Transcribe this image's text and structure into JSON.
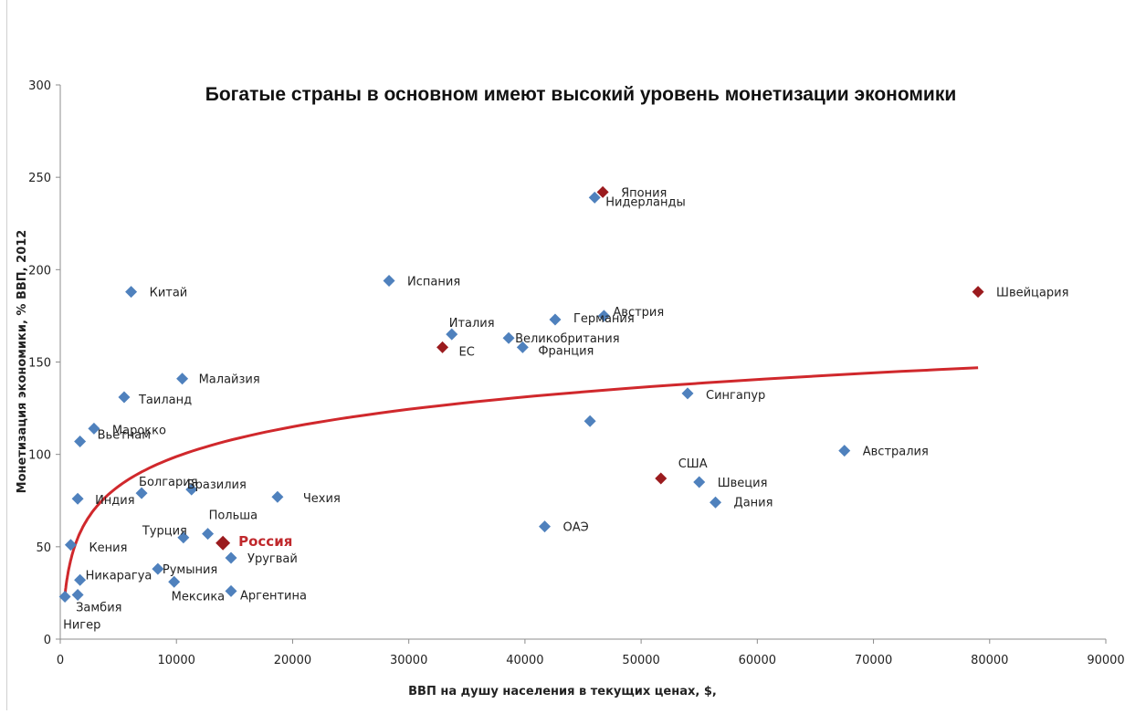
{
  "chart_data": {
    "type": "scatter",
    "title": "Богатые страны в основном имеют высокий уровень монетизации экономики",
    "xlabel": "ВВП на душу населения в текущих ценах, $,",
    "ylabel": "Монетизация экономики, % ВВП, 2012",
    "xlim": [
      0,
      90000
    ],
    "ylim": [
      0,
      300
    ],
    "xticks": [
      "0",
      "10000",
      "20000",
      "30000",
      "40000",
      "50000",
      "60000",
      "70000",
      "80000",
      "90000"
    ],
    "yticks": [
      "0",
      "50",
      "100",
      "150",
      "200",
      "250",
      "300"
    ],
    "grid": false,
    "colors": {
      "point": "#4f81bd",
      "highlight": "#9b1b1e",
      "trend": "#d0282c",
      "russia_label": "#c0292d"
    },
    "trendline": {
      "type": "logarithmic"
    },
    "points": [
      {
        "label": "Япония",
        "x": 46700,
        "y": 242,
        "color": "dark"
      },
      {
        "label": "Нидерланды",
        "x": 46000,
        "y": 239
      },
      {
        "label": "Китай",
        "x": 6100,
        "y": 188
      },
      {
        "label": "Испания",
        "x": 28300,
        "y": 194
      },
      {
        "label": "Швейцария",
        "x": 79000,
        "y": 188,
        "color": "dark"
      },
      {
        "label": "Австрия",
        "x": 46800,
        "y": 175
      },
      {
        "label": "Германия",
        "x": 42600,
        "y": 173
      },
      {
        "label": "Италия",
        "x": 33700,
        "y": 165
      },
      {
        "label": "ЕС",
        "x": 32900,
        "y": 158,
        "color": "dark"
      },
      {
        "label": "Великобритания",
        "x": 38600,
        "y": 163
      },
      {
        "label": "Франция",
        "x": 39800,
        "y": 158
      },
      {
        "label": "Малайзия",
        "x": 10500,
        "y": 141
      },
      {
        "label": "Таиланд",
        "x": 5500,
        "y": 131
      },
      {
        "label": "Сингапур",
        "x": 54000,
        "y": 133
      },
      {
        "label": "",
        "x": 45600,
        "y": 118
      },
      {
        "label": "Марокко",
        "x": 2900,
        "y": 114
      },
      {
        "label": "Вьетнам",
        "x": 1700,
        "y": 107
      },
      {
        "label": "Австралия",
        "x": 67500,
        "y": 102
      },
      {
        "label": "США",
        "x": 51700,
        "y": 87,
        "color": "dark"
      },
      {
        "label": "Швеция",
        "x": 55000,
        "y": 85
      },
      {
        "label": "Дания",
        "x": 56400,
        "y": 74
      },
      {
        "label": "Болгария",
        "x": 7000,
        "y": 79
      },
      {
        "label": "Бразилия",
        "x": 11300,
        "y": 81
      },
      {
        "label": "Индия",
        "x": 1500,
        "y": 76
      },
      {
        "label": "Чехия",
        "x": 18700,
        "y": 77
      },
      {
        "label": "ОАЭ",
        "x": 41700,
        "y": 61
      },
      {
        "label": "Польша",
        "x": 12700,
        "y": 57
      },
      {
        "label": "Турция",
        "x": 10600,
        "y": 55
      },
      {
        "label": "Россия",
        "x": 14000,
        "y": 52,
        "color": "highlight"
      },
      {
        "label": "Кения",
        "x": 900,
        "y": 51
      },
      {
        "label": "Уругвай",
        "x": 14700,
        "y": 44
      },
      {
        "label": "Румыния",
        "x": 8400,
        "y": 38
      },
      {
        "label": "Никарагуа",
        "x": 1700,
        "y": 32
      },
      {
        "label": "Мексика",
        "x": 9800,
        "y": 31
      },
      {
        "label": "Аргентина",
        "x": 14700,
        "y": 26
      },
      {
        "label": "Замбия",
        "x": 1500,
        "y": 24
      },
      {
        "label": "Нигер",
        "x": 400,
        "y": 23
      }
    ]
  }
}
